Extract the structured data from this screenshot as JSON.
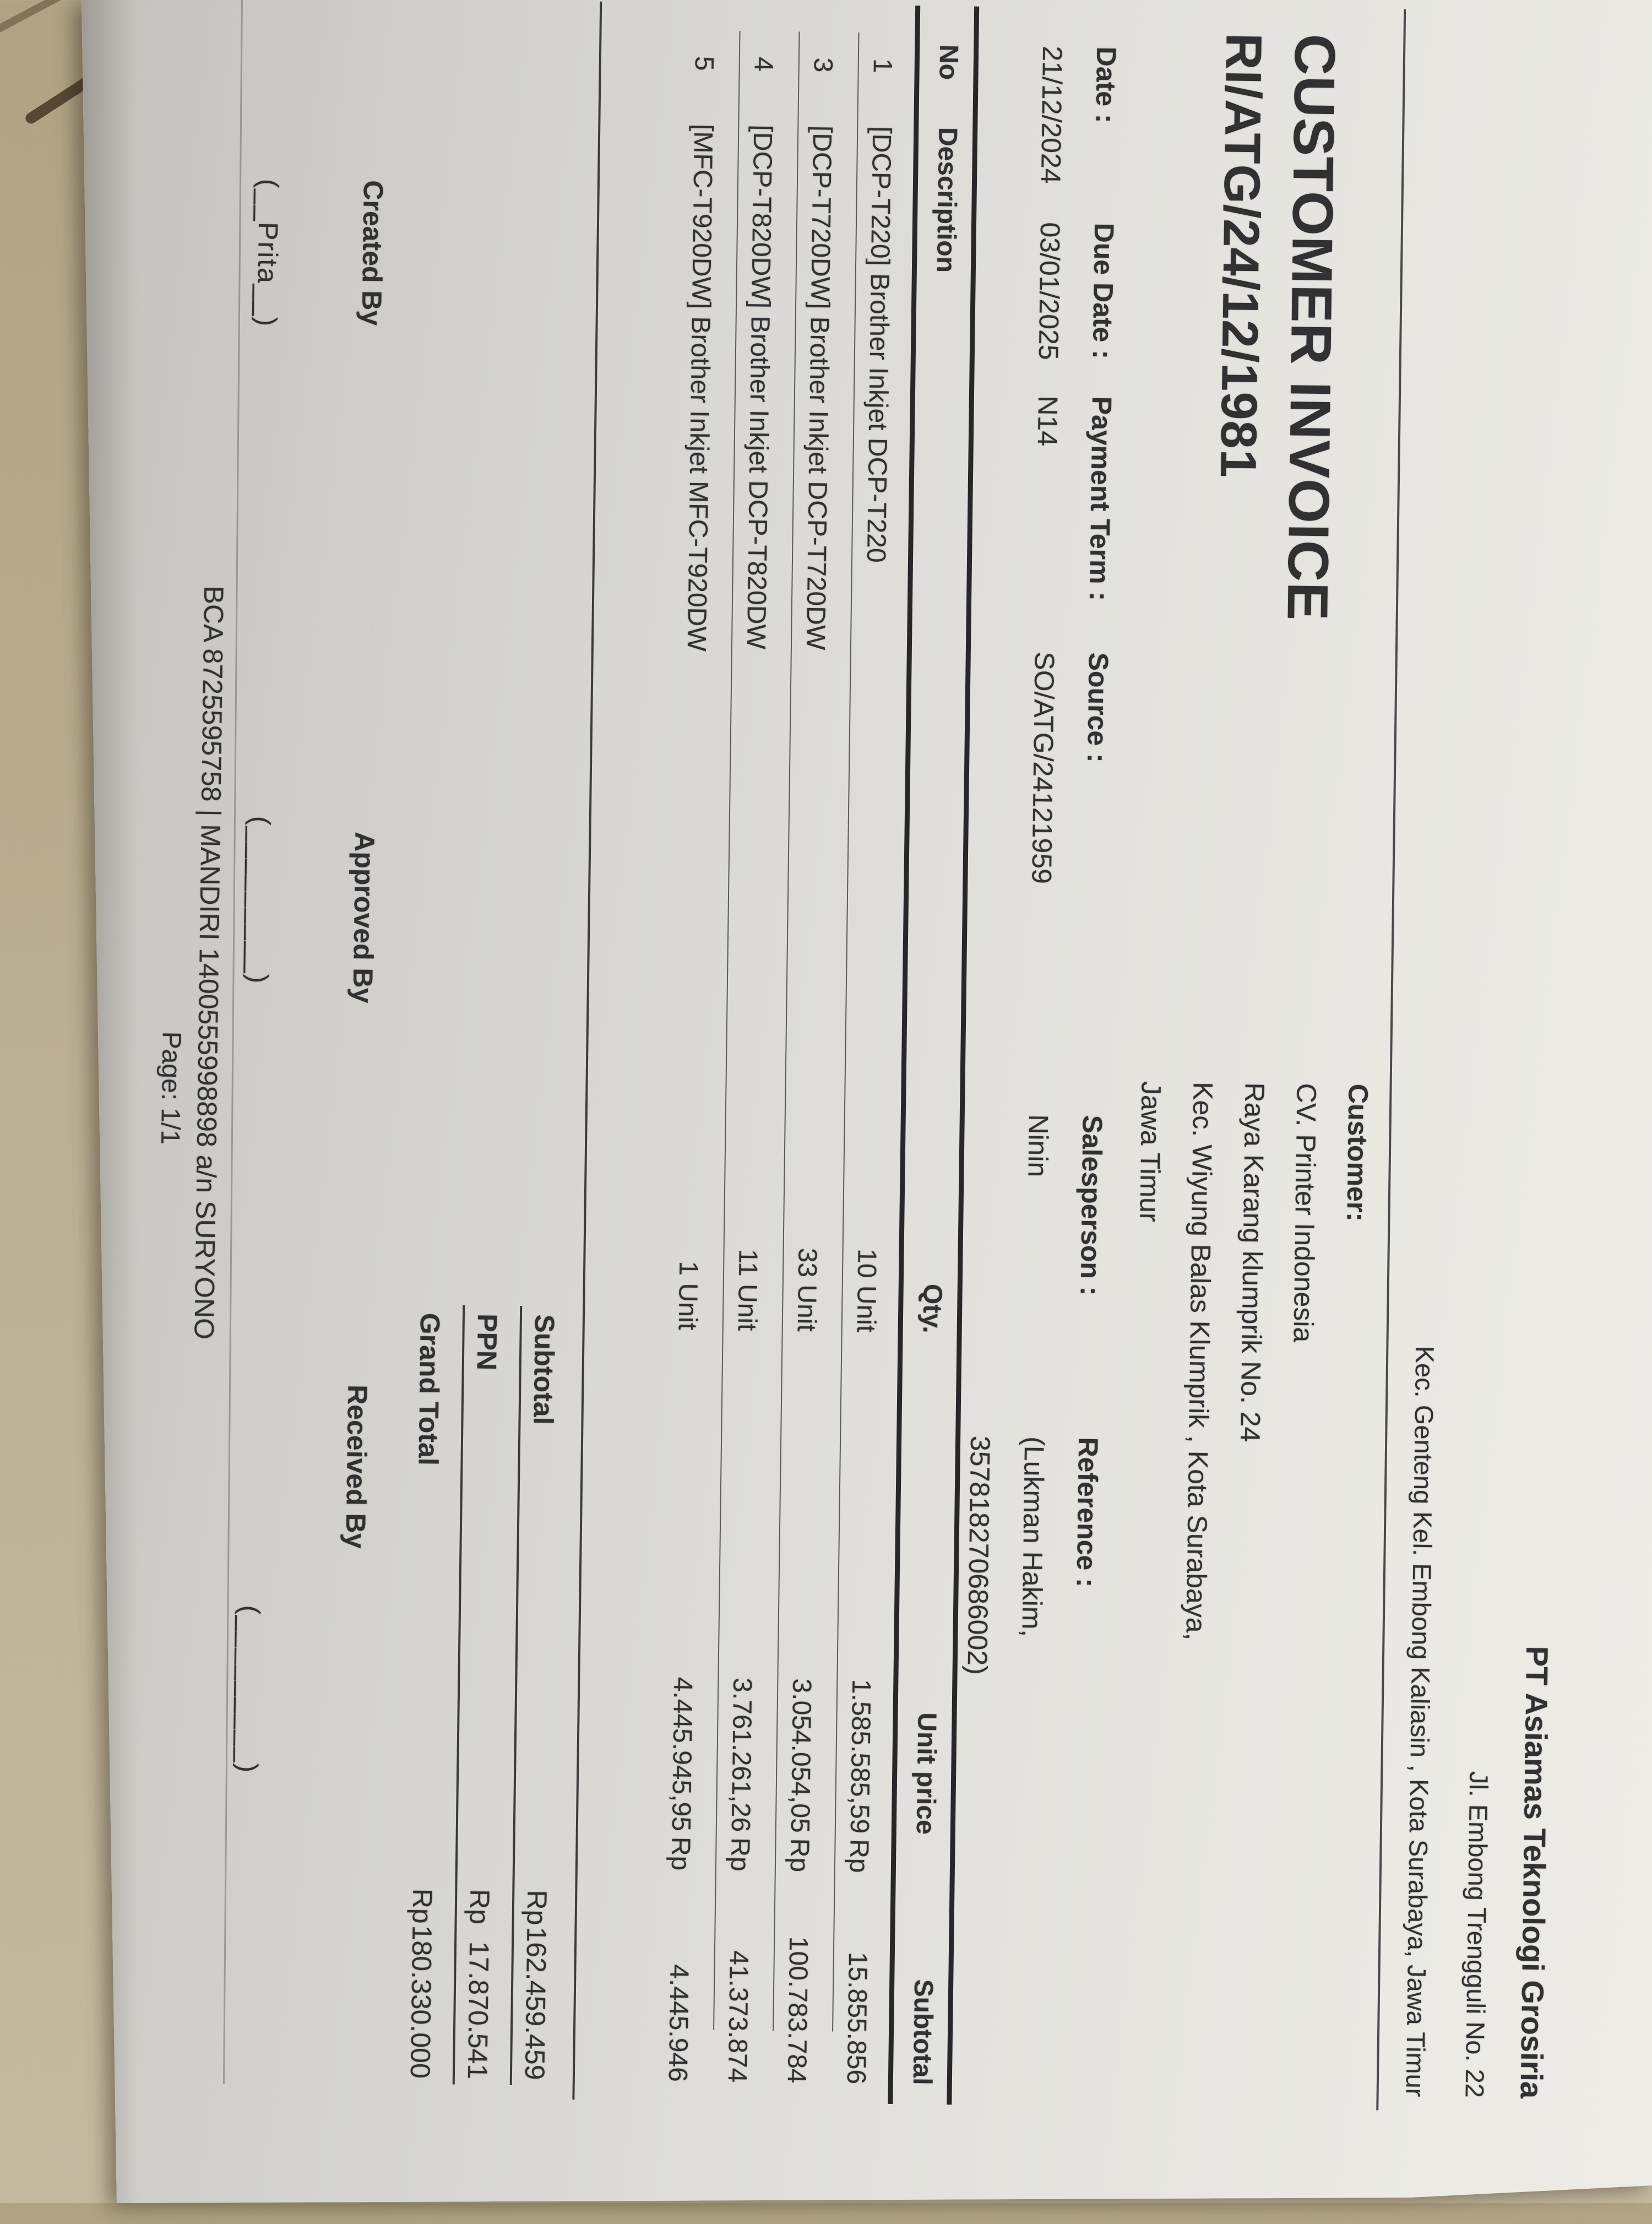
{
  "company": {
    "name": "PT Asiamas Teknologi Grosiria",
    "address_line1": "Jl. Embong Trengguli No. 22",
    "address_line2": "Kec. Genteng Kel. Embong Kaliasin , Kota Surabaya, Jawa Timur"
  },
  "invoice": {
    "title": "CUSTOMER INVOICE",
    "number": "RI/ATG/24/12/1981"
  },
  "customer": {
    "label": "Customer:",
    "name": "CV. Printer Indonesia",
    "address_lines": [
      "Raya Karang klumprik No. 24",
      "Kec. Wiyung Balas Klumprik , Kota Surabaya,",
      "Jawa Timur"
    ]
  },
  "meta": {
    "date": {
      "label": "Date :",
      "value": "21/12/2024"
    },
    "due_date": {
      "label": "Due Date :",
      "value": "03/01/2025"
    },
    "payment_term": {
      "label": "Payment Term :",
      "value": "N14"
    },
    "source": {
      "label": "Source :",
      "value": "SO/ATG/24121959"
    },
    "salesperson": {
      "label": "Salesperson :",
      "value": "Ninin"
    },
    "reference": {
      "label": "Reference :",
      "value_line1": "(Lukman Hakim,",
      "value_line2": "357818270686002)"
    }
  },
  "table": {
    "headers": {
      "no": "No",
      "description": "Description",
      "qty": "Qty.",
      "unit_price": "Unit price",
      "subtotal": "Subtotal"
    },
    "rows": [
      {
        "no": "1",
        "description": "[DCP-T220] Brother Inkjet DCP-T220",
        "qty": "10 Unit",
        "unit_price": "1.585.585,59",
        "currency": "Rp",
        "subtotal": "15.855.856"
      },
      {
        "no": "3",
        "description": "[DCP-T720DW] Brother Inkjet DCP-T720DW",
        "qty": "33 Unit",
        "unit_price": "3.054.054,05",
        "currency": "Rp",
        "subtotal": "100.783.784"
      },
      {
        "no": "4",
        "description": "[DCP-T820DW] Brother Inkjet DCP-T820DW",
        "qty": "11 Unit",
        "unit_price": "3.761.261,26",
        "currency": "Rp",
        "subtotal": "41.373.874"
      },
      {
        "no": "5",
        "description": "[MFC-T920DW] Brother Inkjet MFC-T920DW",
        "qty": "1 Unit",
        "unit_price": "4.445.945,95",
        "currency": "Rp",
        "subtotal": "4.445.946"
      }
    ]
  },
  "totals": {
    "subtotal": {
      "label": "Subtotal",
      "currency": "Rp",
      "amount": "162.459.459"
    },
    "ppn": {
      "label": "PPN",
      "currency": "Rp",
      "amount": "17.870.541"
    },
    "grand_total": {
      "label": "Grand Total",
      "currency": "Rp",
      "amount": "180.330.000"
    }
  },
  "signatures": {
    "created": {
      "label": "Created By",
      "blank": "(__Prita__)"
    },
    "approved": {
      "label": "Approved By",
      "blank": "(_________)"
    },
    "received": {
      "label": "Received By",
      "blank": "(_________)"
    }
  },
  "footer": {
    "bank_line": "BCA 8725595758 | MANDIRI 1400555998898 a/n SURYONO",
    "page": "Page: 1/1"
  }
}
